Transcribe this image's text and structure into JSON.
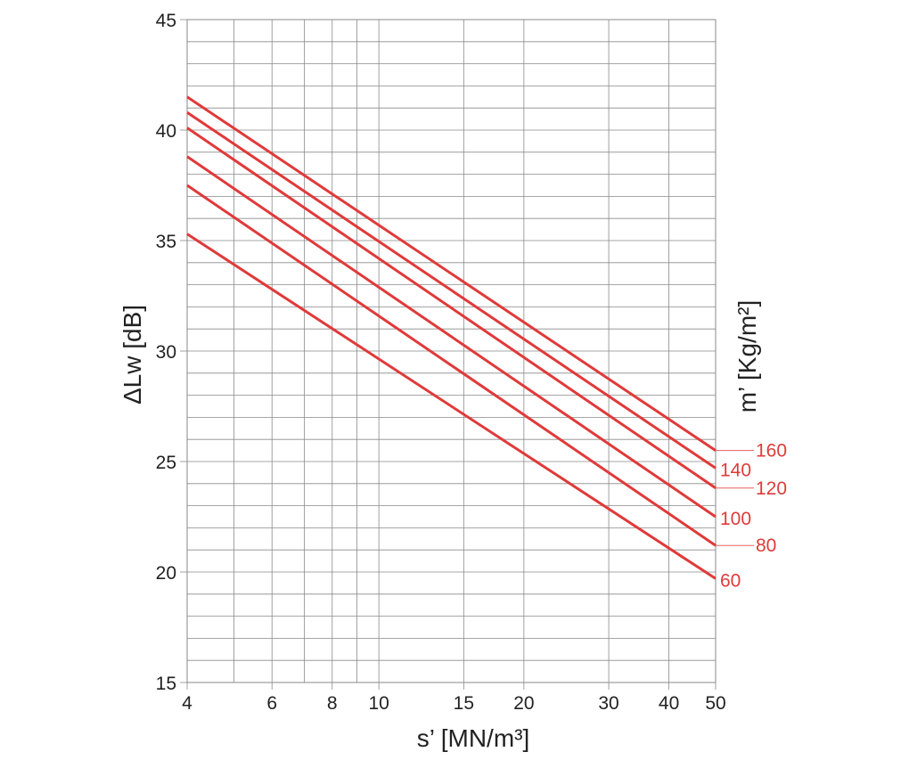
{
  "chart_data": {
    "type": "line",
    "xlabel": "s’ [MN/m³]",
    "ylabel": "ΔLw [dB]",
    "legend_title": "m’ [Kg/m²]",
    "x_scale": "log",
    "xlim": [
      4,
      50
    ],
    "ylim": [
      15,
      45
    ],
    "grid": true,
    "x_ticks": [
      4,
      6,
      8,
      10,
      15,
      20,
      30,
      40,
      50
    ],
    "x_tick_labels": [
      "4",
      "6",
      "8",
      "10",
      "15",
      "20",
      "30",
      "40",
      "50"
    ],
    "x_minor_gridlines": [
      5,
      7,
      9
    ],
    "y_ticks": [
      15,
      20,
      25,
      30,
      35,
      40,
      45
    ],
    "y_tick_labels": [
      "15",
      "20",
      "25",
      "30",
      "35",
      "40",
      "45"
    ],
    "y_minor_step": 1,
    "line_color": "#e03a3a",
    "series": [
      {
        "name": "60",
        "x": [
          4,
          50
        ],
        "y": [
          35.3,
          19.7
        ]
      },
      {
        "name": "80",
        "x": [
          4,
          50
        ],
        "y": [
          37.5,
          21.2
        ]
      },
      {
        "name": "100",
        "x": [
          4,
          50
        ],
        "y": [
          38.8,
          22.5
        ]
      },
      {
        "name": "120",
        "x": [
          4,
          50
        ],
        "y": [
          40.1,
          23.8
        ]
      },
      {
        "name": "140",
        "x": [
          4,
          50
        ],
        "y": [
          40.8,
          24.7
        ]
      },
      {
        "name": "160",
        "x": [
          4,
          50
        ],
        "y": [
          41.5,
          25.5
        ]
      }
    ]
  }
}
